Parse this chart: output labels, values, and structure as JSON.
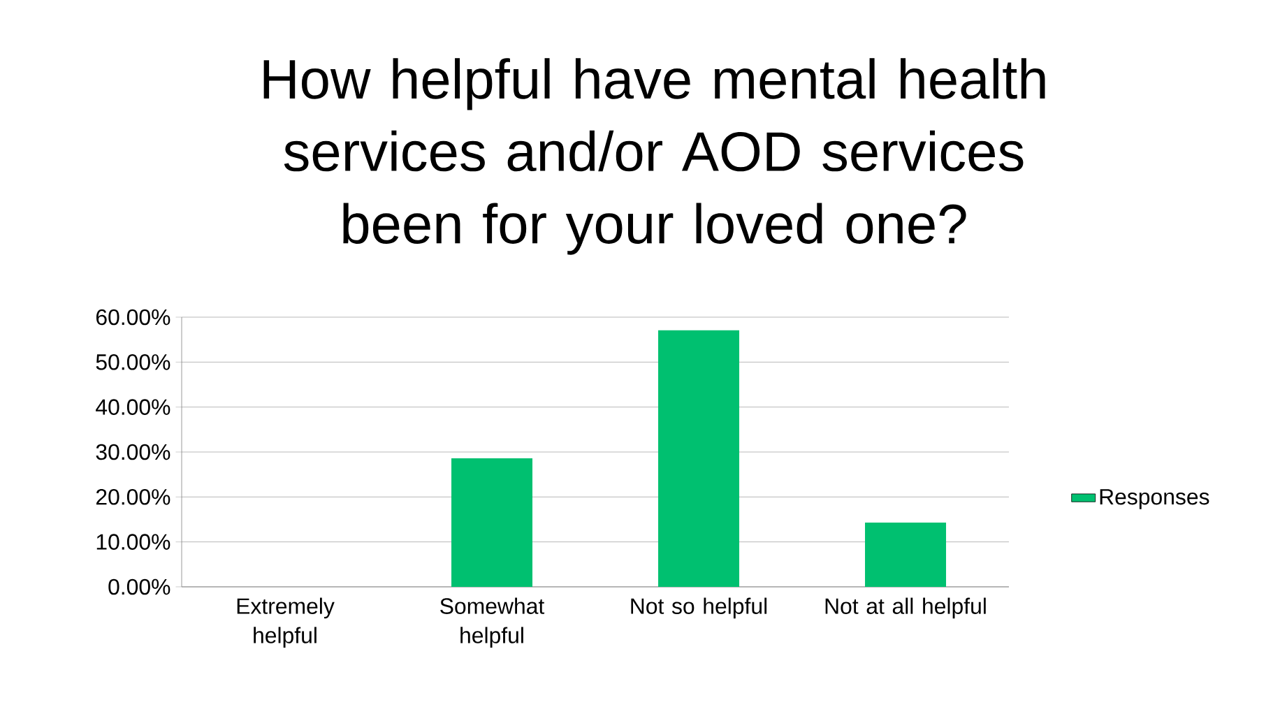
{
  "chart_data": {
    "type": "bar",
    "title": "How helpful have mental health services and/or AOD services been for your loved one?",
    "categories": [
      "Extremely helpful",
      "Somewhat helpful",
      "Not so helpful",
      "Not at all helpful"
    ],
    "series": [
      {
        "name": "Responses",
        "color": "#00c070",
        "values": [
          0,
          28.6,
          57.1,
          14.3
        ]
      }
    ],
    "ylim": [
      0,
      60
    ],
    "yticks": [
      {
        "value": 0,
        "label": "0.00%"
      },
      {
        "value": 10,
        "label": "10.00%"
      },
      {
        "value": 20,
        "label": "20.00%"
      },
      {
        "value": 30,
        "label": "30.00%"
      },
      {
        "value": 40,
        "label": "40.00%"
      },
      {
        "value": 50,
        "label": "50.00%"
      },
      {
        "value": 60,
        "label": "60.00%"
      }
    ],
    "grid": "y",
    "legend": "right"
  }
}
